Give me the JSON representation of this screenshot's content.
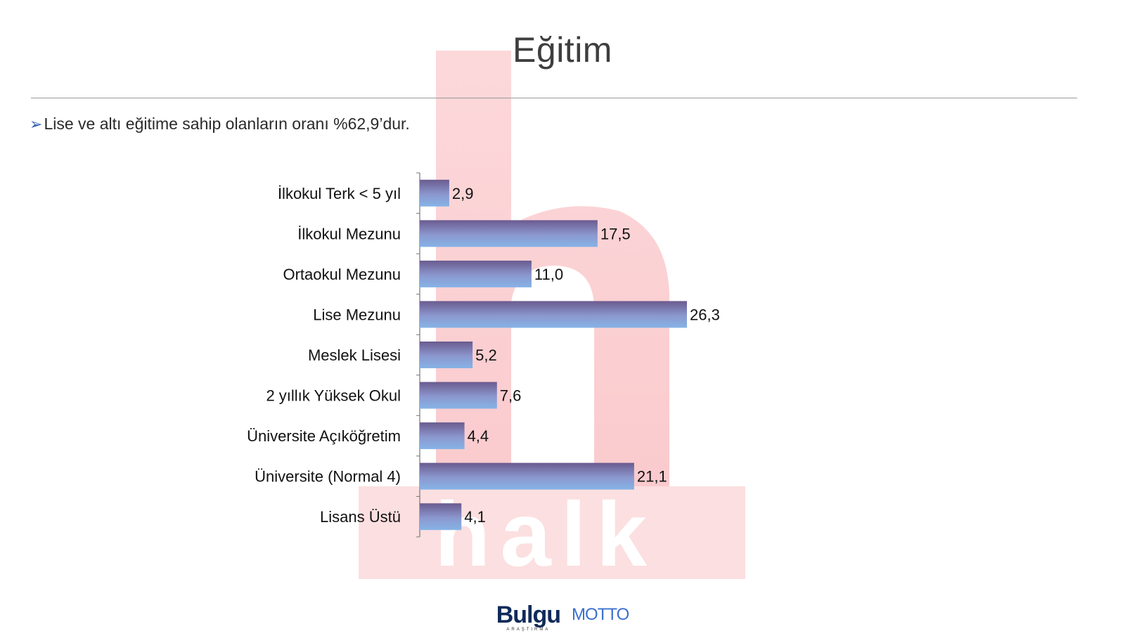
{
  "title": "Eğitim",
  "subtitle": {
    "bullet_icon": "arrow-bullet-icon",
    "text": "Lise ve altı eğitime sahip olanların oranı  %62,9’dur."
  },
  "watermark": {
    "text": "halk",
    "color": "#f7a8ad"
  },
  "logos": {
    "bulgu": "Bulgu",
    "bulgu_sub": "ARAŞTIRMA",
    "motto": "MOTTO"
  },
  "colors": {
    "bar_light": "#86b3e6",
    "bar_dark": "#6a5b8f",
    "axis": "#777777"
  },
  "chart_data": {
    "type": "bar",
    "orientation": "horizontal",
    "categories": [
      "İlkokul Terk < 5 yıl",
      "İlkokul Mezunu",
      "Ortaokul Mezunu",
      "Lise Mezunu",
      "Meslek Lisesi",
      "2 yıllık Yüksek Okul",
      "Üniversite Açıköğretim",
      "Üniversite (Normal 4)",
      "Lisans Üstü"
    ],
    "values": [
      2.9,
      17.5,
      11.0,
      26.3,
      5.2,
      7.6,
      4.4,
      21.1,
      4.1
    ],
    "value_labels": [
      "2,9",
      "17,5",
      "11,0",
      "26,3",
      "5,2",
      "7,6",
      "4,4",
      "21,1",
      "4,1"
    ],
    "xlim": [
      0,
      30
    ],
    "grid": false,
    "legend": "none"
  }
}
